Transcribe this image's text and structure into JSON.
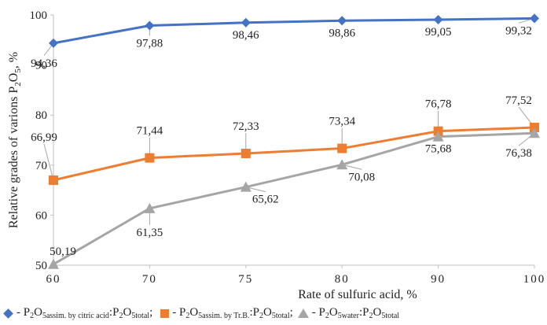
{
  "chart_data": {
    "type": "line",
    "categories": [
      "60",
      "70",
      "75",
      "80",
      "90",
      "100"
    ],
    "xlabel": "Rate of sulfuric acid, %",
    "ylabel": {
      "pre": "Relative grades of varions P",
      "sub": "2",
      "mid": "O",
      "sub2": "5",
      "post": ", %"
    },
    "ylim": [
      50,
      100
    ],
    "yticks": [
      "50",
      "60",
      "70",
      "80",
      "90",
      "100"
    ],
    "grid": false,
    "series": [
      {
        "key": "citric",
        "color": "#4472C4",
        "marker": "diamond",
        "values": [
          94.36,
          97.88,
          98.46,
          98.86,
          99.05,
          99.32
        ],
        "labels": [
          "94,36",
          "97,88",
          "98,46",
          "98,86",
          "99,05",
          "99,32"
        ]
      },
      {
        "key": "trb",
        "color": "#ED7D31",
        "marker": "square",
        "values": [
          66.99,
          71.44,
          72.33,
          73.34,
          76.78,
          77.52
        ],
        "labels": [
          "66,99",
          "71,44",
          "72,33",
          "73,34",
          "76,78",
          "77,52"
        ]
      },
      {
        "key": "water",
        "color": "#A5A5A5",
        "marker": "triangle",
        "values": [
          50.19,
          61.35,
          65.62,
          70.08,
          75.68,
          76.38
        ],
        "labels": [
          "50,19",
          "61,35",
          "65,62",
          "70,08",
          "75,68",
          "76,38"
        ]
      }
    ]
  },
  "legend": {
    "items": [
      {
        "dash": " - P",
        "s1": "2",
        "mid": "O",
        "s2": "5assim. by citric acid",
        "colon": ":P",
        "s3": "2",
        "mid2": "O",
        "s4": "5total",
        "end": ";"
      },
      {
        "dash": " - P",
        "s1": "2",
        "mid": "O",
        "s2": "5assim. by Tr.B.",
        "colon": ":P",
        "s3": "2",
        "mid2": "O",
        "s4": "5total",
        "end": ";"
      },
      {
        "dash": " - P",
        "s1": "2",
        "mid": "O",
        "s2": "5water",
        "colon": ":P",
        "s3": "2",
        "mid2": "O",
        "s4": "5total",
        "end": ""
      }
    ]
  }
}
